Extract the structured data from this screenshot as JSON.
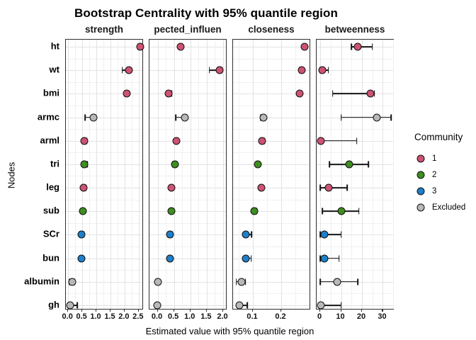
{
  "chart_data": {
    "type": "scatter",
    "title": "Bootstrap Centrality with 95% quantile region",
    "xlabel": "Estimated value with 95% quantile region",
    "ylabel": "Nodes",
    "grid": true,
    "legend_position": "right",
    "facets": [
      {
        "label": "strength",
        "domain": [
          -0.08,
          2.68
        ],
        "ticks": [
          0,
          0.5,
          1,
          1.5,
          2,
          2.5
        ],
        "tick_labels": [
          "0.0",
          "0.5",
          "1.0",
          "1.5",
          "2.0",
          "2.5"
        ]
      },
      {
        "label": "pected_influen",
        "domain": [
          -0.25,
          2.13
        ],
        "ticks": [
          0,
          0.5,
          1,
          1.5,
          2
        ],
        "tick_labels": [
          "0.0",
          "0.5",
          "1.0",
          "1.5",
          "2.0"
        ]
      },
      {
        "label": "closeness",
        "domain": [
          0.03,
          0.305
        ],
        "ticks": [
          0.1,
          0.2
        ],
        "tick_labels": [
          "0.1",
          "0.2"
        ]
      },
      {
        "label": "betweenness",
        "domain": [
          -1.7,
          35.6
        ],
        "ticks": [
          0,
          10,
          20,
          30
        ],
        "tick_labels": [
          "0",
          "10",
          "20",
          "30"
        ]
      }
    ],
    "estimate_format": "[value, ci_low, ci_high] per facet, in facet order",
    "nodes": [
      {
        "label": "ht",
        "community": "1",
        "estimates": [
          [
            2.55,
            2.47,
            2.6
          ],
          [
            0.7,
            0.66,
            0.74
          ],
          [
            0.283,
            0.278,
            0.288
          ],
          [
            18,
            15,
            25
          ]
        ]
      },
      {
        "label": "wt",
        "community": "1",
        "estimates": [
          [
            2.15,
            1.92,
            2.2
          ],
          [
            1.9,
            1.58,
            1.97
          ],
          [
            0.272,
            0.266,
            0.276
          ],
          [
            1,
            0,
            4
          ]
        ]
      },
      {
        "label": "bmi",
        "community": "1",
        "estimates": [
          [
            2.08,
            2.0,
            2.14
          ],
          [
            0.33,
            0.3,
            0.42
          ],
          [
            0.266,
            0.261,
            0.271
          ],
          [
            24,
            6,
            26
          ]
        ]
      },
      {
        "label": "armc",
        "community": "Excluded",
        "estimates": [
          [
            0.9,
            0.6,
            0.95
          ],
          [
            0.83,
            0.56,
            0.87
          ],
          [
            0.138,
            0.128,
            0.142
          ],
          [
            27,
            10,
            34
          ]
        ]
      },
      {
        "label": "arml",
        "community": "1",
        "estimates": [
          [
            0.58,
            0.55,
            0.66
          ],
          [
            0.57,
            0.54,
            0.6
          ],
          [
            0.132,
            0.128,
            0.14
          ],
          [
            0.5,
            0,
            17.5
          ]
        ]
      },
      {
        "label": "tri",
        "community": "2",
        "estimates": [
          [
            0.57,
            0.54,
            0.67
          ],
          [
            0.53,
            0.46,
            0.56
          ],
          [
            0.117,
            0.113,
            0.121
          ],
          [
            14,
            4.5,
            23
          ]
        ]
      },
      {
        "label": "leg",
        "community": "1",
        "estimates": [
          [
            0.54,
            0.51,
            0.62
          ],
          [
            0.43,
            0.4,
            0.46
          ],
          [
            0.13,
            0.126,
            0.136
          ],
          [
            4,
            0,
            13
          ]
        ]
      },
      {
        "label": "sub",
        "community": "2",
        "estimates": [
          [
            0.51,
            0.48,
            0.54
          ],
          [
            0.43,
            0.4,
            0.48
          ],
          [
            0.105,
            0.101,
            0.114
          ],
          [
            10,
            1,
            18.5
          ]
        ]
      },
      {
        "label": "SCr",
        "community": "3",
        "estimates": [
          [
            0.46,
            0.43,
            0.56
          ],
          [
            0.38,
            0.31,
            0.44
          ],
          [
            0.075,
            0.07,
            0.096
          ],
          [
            2,
            0,
            10
          ]
        ]
      },
      {
        "label": "bun",
        "community": "3",
        "estimates": [
          [
            0.48,
            0.45,
            0.52
          ],
          [
            0.38,
            0.35,
            0.42
          ],
          [
            0.075,
            0.071,
            0.094
          ],
          [
            2,
            0,
            9
          ]
        ]
      },
      {
        "label": "albumin",
        "community": "Excluded",
        "estimates": [
          [
            0.15,
            0.05,
            0.24
          ],
          [
            0.0,
            -0.02,
            0.03
          ],
          [
            0.06,
            0.042,
            0.074
          ],
          [
            8,
            0,
            18
          ]
        ]
      },
      {
        "label": "gh",
        "community": "Excluded",
        "estimates": [
          [
            0.07,
            0.02,
            0.33
          ],
          [
            -0.02,
            -0.04,
            0.0
          ],
          [
            0.053,
            0.048,
            0.08
          ],
          [
            0.5,
            0,
            10
          ]
        ]
      }
    ],
    "communities": {
      "1": "#cd5373",
      "2": "#3e8e20",
      "3": "#1f7fc9",
      "Excluded": "#b8b8b8"
    }
  },
  "legend": {
    "title": "Community",
    "items": [
      {
        "label": "1",
        "community": "1"
      },
      {
        "label": "2",
        "community": "2"
      },
      {
        "label": "3",
        "community": "3"
      },
      {
        "label": "Excluded",
        "community": "Excluded"
      }
    ]
  }
}
